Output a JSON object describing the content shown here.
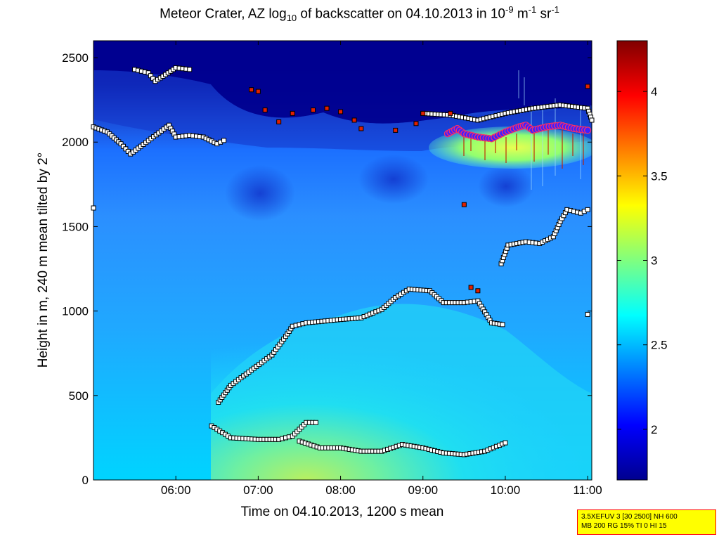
{
  "title": {
    "prefix": "Meteor Crater, AZ log",
    "sub": "10",
    "middle": " of backscatter on 04.10.2013 in 10",
    "sup1": "-9",
    "unit_m": " m",
    "sup2": "-1",
    "unit_sr": " sr",
    "sup3": "-1"
  },
  "info_box": {
    "line1": "3.5XEFUV 3 [30 2500] NH 600",
    "line2": "MB 200 RG 15% TI 0 HI 15"
  },
  "chart_data": {
    "type": "heatmap",
    "xlabel": "Time on 04.10.2013, 1200 s mean",
    "ylabel": "Height in m, 240 m mean tilted by 2°",
    "xlim": [
      "05:00",
      "11:03"
    ],
    "ylim": [
      0,
      2600
    ],
    "x_ticks": [
      "06:00",
      "07:00",
      "08:00",
      "09:00",
      "10:00",
      "11:00"
    ],
    "y_ticks": [
      0,
      500,
      1000,
      1500,
      2000,
      2500
    ],
    "colorbar": {
      "colormap": "jet",
      "range": [
        1.7,
        4.3
      ],
      "ticks": [
        2,
        2.5,
        3,
        3.5,
        4
      ]
    },
    "grid": false,
    "legend": "none",
    "layer_series": [
      {
        "marker": "square",
        "points": [
          [
            "06:31",
            460
          ],
          [
            "06:40",
            560
          ],
          [
            "06:55",
            650
          ],
          [
            "07:10",
            740
          ],
          [
            "07:20",
            850
          ],
          [
            "07:25",
            910
          ],
          [
            "07:35",
            930
          ],
          [
            "08:00",
            950
          ],
          [
            "08:15",
            960
          ],
          [
            "08:30",
            1010
          ],
          [
            "08:40",
            1080
          ],
          [
            "08:50",
            1130
          ],
          [
            "09:05",
            1120
          ],
          [
            "09:15",
            1050
          ],
          [
            "09:30",
            1050
          ],
          [
            "09:40",
            1060
          ],
          [
            "09:50",
            930
          ],
          [
            "09:58",
            920
          ]
        ]
      },
      {
        "marker": "square",
        "points": [
          [
            "06:26",
            320
          ],
          [
            "06:40",
            250
          ],
          [
            "07:00",
            240
          ],
          [
            "07:15",
            240
          ],
          [
            "07:25",
            260
          ],
          [
            "07:35",
            340
          ],
          [
            "07:42",
            340
          ]
        ]
      },
      {
        "marker": "square",
        "points": [
          [
            "07:30",
            230
          ],
          [
            "07:45",
            190
          ],
          [
            "08:00",
            190
          ],
          [
            "08:15",
            170
          ],
          [
            "08:30",
            170
          ],
          [
            "08:45",
            210
          ],
          [
            "09:00",
            190
          ],
          [
            "09:15",
            160
          ],
          [
            "09:30",
            150
          ],
          [
            "09:45",
            170
          ],
          [
            "10:00",
            220
          ]
        ]
      },
      {
        "marker": "square",
        "points": [
          [
            "05:00",
            2090
          ],
          [
            "05:10",
            2060
          ],
          [
            "05:20",
            1990
          ],
          [
            "05:27",
            1930
          ],
          [
            "05:55",
            2100
          ],
          [
            "06:00",
            2030
          ],
          [
            "06:10",
            2040
          ],
          [
            "06:20",
            2030
          ],
          [
            "06:30",
            1990
          ],
          [
            "06:35",
            2010
          ]
        ]
      },
      {
        "marker": "square",
        "points": [
          [
            "05:30",
            2430
          ],
          [
            "05:40",
            2410
          ],
          [
            "05:45",
            2360
          ],
          [
            "06:00",
            2440
          ],
          [
            "06:10",
            2430
          ]
        ]
      },
      {
        "marker": "square",
        "points": [
          [
            "09:57",
            1280
          ],
          [
            "10:02",
            1390
          ],
          [
            "10:15",
            1410
          ],
          [
            "10:25",
            1400
          ],
          [
            "10:35",
            1440
          ],
          [
            "10:40",
            1530
          ],
          [
            "10:45",
            1600
          ],
          [
            "10:55",
            1580
          ],
          [
            "11:00",
            1600
          ]
        ]
      },
      {
        "marker": "square",
        "points": [
          [
            "09:00",
            2170
          ],
          [
            "09:20",
            2160
          ],
          [
            "09:40",
            2130
          ],
          [
            "10:00",
            2170
          ],
          [
            "10:20",
            2200
          ],
          [
            "10:40",
            2220
          ],
          [
            "11:00",
            2200
          ],
          [
            "11:03",
            2130
          ]
        ]
      },
      {
        "marker": "square",
        "points": [
          [
            "11:00",
            980
          ]
        ]
      },
      {
        "marker": "square",
        "points": [
          [
            "05:00",
            1610
          ]
        ]
      }
    ],
    "top_layer_series": [
      {
        "marker": "square",
        "points": [
          [
            "06:55",
            2310
          ],
          [
            "07:00",
            2300
          ],
          [
            "07:05",
            2190
          ],
          [
            "07:15",
            2120
          ],
          [
            "07:25",
            2170
          ],
          [
            "07:40",
            2190
          ],
          [
            "07:50",
            2200
          ],
          [
            "08:00",
            2180
          ],
          [
            "08:10",
            2130
          ],
          [
            "08:15",
            2080
          ],
          [
            "08:40",
            2070
          ],
          [
            "08:55",
            2110
          ],
          [
            "09:00",
            2170
          ],
          [
            "09:20",
            2170
          ],
          [
            "09:30",
            1630
          ],
          [
            "09:35",
            1140
          ],
          [
            "09:40",
            1120
          ],
          [
            "11:00",
            2330
          ]
        ]
      }
    ],
    "cloud_base_series": {
      "marker": "circle",
      "points": [
        [
          "09:18",
          2050
        ],
        [
          "09:25",
          2080
        ],
        [
          "09:30",
          2050
        ],
        [
          "09:40",
          2030
        ],
        [
          "09:50",
          2020
        ],
        [
          "10:00",
          2060
        ],
        [
          "10:10",
          2090
        ],
        [
          "10:15",
          2100
        ],
        [
          "10:20",
          2070
        ],
        [
          "10:30",
          2090
        ],
        [
          "10:40",
          2100
        ],
        [
          "10:50",
          2080
        ],
        [
          "11:00",
          2070
        ]
      ]
    }
  }
}
